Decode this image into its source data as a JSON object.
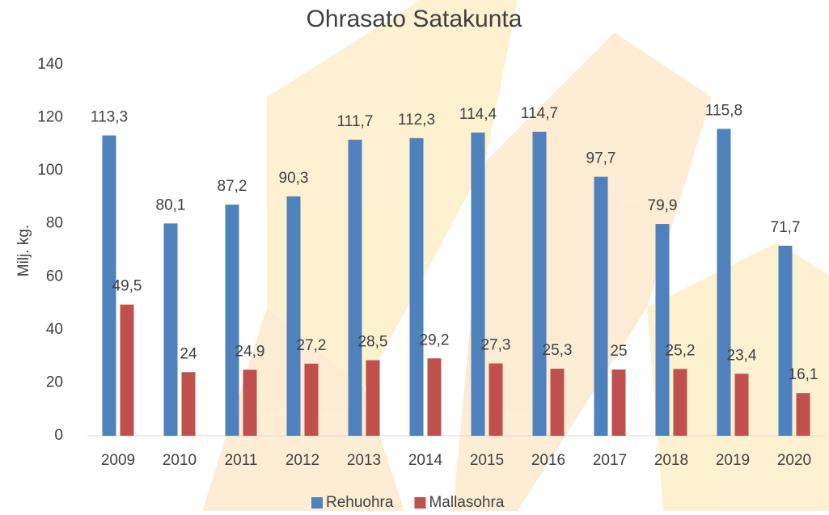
{
  "chart_data": {
    "type": "bar",
    "title": "Ohrasato Satakunta",
    "y_label": "Milj. kg.",
    "categories": [
      "2009",
      "2010",
      "2011",
      "2012",
      "2013",
      "2014",
      "2015",
      "2016",
      "2017",
      "2018",
      "2019",
      "2020"
    ],
    "series": [
      {
        "name": "Rehuohra",
        "color": "#4f81bd",
        "values": [
          113.3,
          80.1,
          87.2,
          90.3,
          111.7,
          112.3,
          114.4,
          114.7,
          97.7,
          79.9,
          115.8,
          71.7
        ],
        "value_labels": [
          "113,3",
          "80,1",
          "87,2",
          "90,3",
          "111,7",
          "112,3",
          "114,4",
          "114,7",
          "97,7",
          "79,9",
          "115,8",
          "71,7"
        ]
      },
      {
        "name": "Mallasohra",
        "color": "#c0504d",
        "values": [
          49.5,
          24,
          24.9,
          27.2,
          28.5,
          29.2,
          27.3,
          25.3,
          25,
          25.2,
          23.4,
          16.1
        ],
        "value_labels": [
          "49,5",
          "24",
          "24,9",
          "27,2",
          "28,5",
          "29,2",
          "27,3",
          "25,3",
          "25",
          "25,2",
          "23,4",
          "16,1"
        ]
      }
    ],
    "ylim": [
      0,
      140
    ],
    "yticks": [
      0,
      20,
      40,
      60,
      80,
      100,
      120,
      140
    ],
    "grid": false,
    "legend": "bottom"
  }
}
